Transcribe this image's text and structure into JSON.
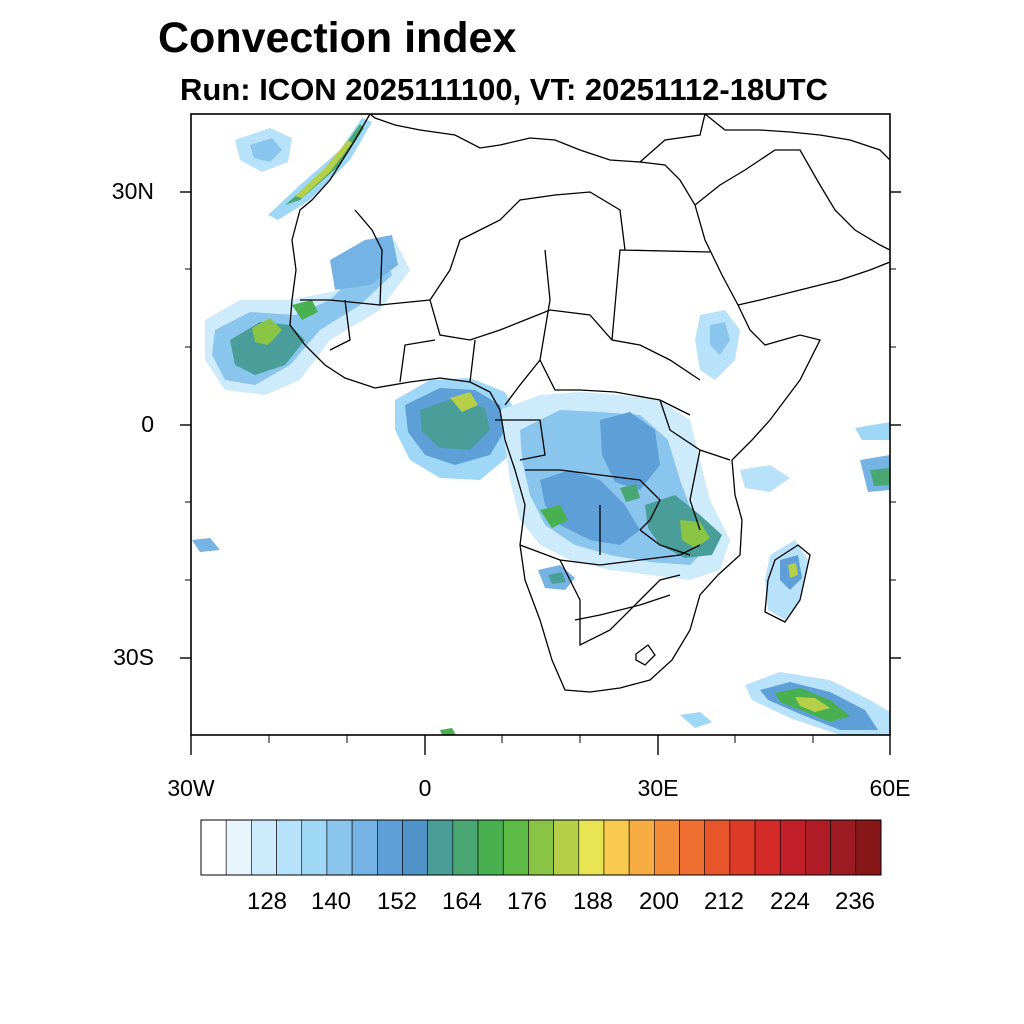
{
  "title": "Convection index",
  "subtitle": "Run: ICON 2025111100,  VT: 20251112-18UTC",
  "lat_labels": [
    "30N",
    "0",
    "30S"
  ],
  "lon_labels": [
    "30W",
    "0",
    "30E",
    "60E"
  ],
  "colorbar": {
    "tick_labels": [
      "128",
      "140",
      "152",
      "164",
      "176",
      "188",
      "200",
      "212",
      "224",
      "236"
    ],
    "colors": [
      "#ffffff",
      "#e9f5fd",
      "#cdebfb",
      "#b7e2f9",
      "#9fd7f6",
      "#8ac5ee",
      "#74b3e4",
      "#5f9fd8",
      "#4f93c9",
      "#4a9e9a",
      "#49a773",
      "#48b04f",
      "#5cba45",
      "#89c444",
      "#b6cf48",
      "#e8e454",
      "#f8cb4e",
      "#f7ad43",
      "#f38d38",
      "#ee6f30",
      "#e7552b",
      "#dd3a28",
      "#d42a28",
      "#c22028",
      "#b01c25",
      "#9c1a22",
      "#871719"
    ]
  }
}
